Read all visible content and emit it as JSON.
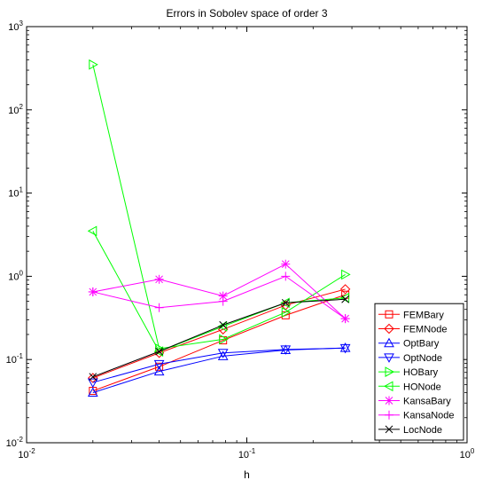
{
  "chart_data": {
    "type": "line",
    "title": "Errors in Sobolev space of order 3",
    "xlabel": "h",
    "ylabel": "",
    "xscale": "log",
    "yscale": "log",
    "xlim": [
      0.01,
      1
    ],
    "ylim": [
      0.01,
      1000
    ],
    "grid": false,
    "legend_position": "bottom-right",
    "x_ticks": [
      {
        "value": 0.01,
        "base": "10",
        "exp": "-2"
      },
      {
        "value": 0.1,
        "base": "10",
        "exp": "-1"
      },
      {
        "value": 1,
        "base": "10",
        "exp": "0"
      }
    ],
    "y_ticks": [
      {
        "value": 0.01,
        "base": "10",
        "exp": "-2"
      },
      {
        "value": 0.1,
        "base": "10",
        "exp": "-1"
      },
      {
        "value": 1,
        "base": "10",
        "exp": "0"
      },
      {
        "value": 10,
        "base": "10",
        "exp": "1"
      },
      {
        "value": 100,
        "base": "10",
        "exp": "2"
      },
      {
        "value": 1000,
        "base": "10",
        "exp": "3"
      }
    ],
    "x": [
      0.02,
      0.04,
      0.078,
      0.15,
      0.28
    ],
    "series": [
      {
        "name": "FEMBary",
        "color": "#ff0000",
        "marker": "square",
        "values": [
          0.042,
          0.082,
          0.17,
          0.34,
          0.6
        ]
      },
      {
        "name": "FEMNode",
        "color": "#ff0000",
        "marker": "diamond",
        "values": [
          0.06,
          0.12,
          0.23,
          0.45,
          0.7
        ]
      },
      {
        "name": "OptBary",
        "color": "#0000ff",
        "marker": "triangle-up",
        "values": [
          0.04,
          0.072,
          0.11,
          0.13,
          0.138
        ]
      },
      {
        "name": "OptNode",
        "color": "#0000ff",
        "marker": "triangle-down",
        "values": [
          0.053,
          0.088,
          0.12,
          0.132,
          0.137
        ]
      },
      {
        "name": "HOBary",
        "color": "#00ff00",
        "marker": "triangle-right",
        "values": [
          350,
          0.135,
          0.175,
          0.37,
          1.05
        ]
      },
      {
        "name": "HONode",
        "color": "#00ff00",
        "marker": "triangle-left",
        "values": [
          3.5,
          0.125,
          0.25,
          0.48,
          0.55
        ]
      },
      {
        "name": "KansaBary",
        "color": "#ff00ff",
        "marker": "asterisk",
        "values": [
          0.65,
          0.92,
          0.58,
          1.4,
          0.31
        ]
      },
      {
        "name": "KansaNode",
        "color": "#ff00ff",
        "marker": "plus",
        "values": [
          0.65,
          0.42,
          0.5,
          1.0,
          0.31
        ]
      },
      {
        "name": "LocNode",
        "color": "#000000",
        "marker": "x",
        "values": [
          0.062,
          0.125,
          0.26,
          0.48,
          0.53
        ]
      }
    ]
  }
}
